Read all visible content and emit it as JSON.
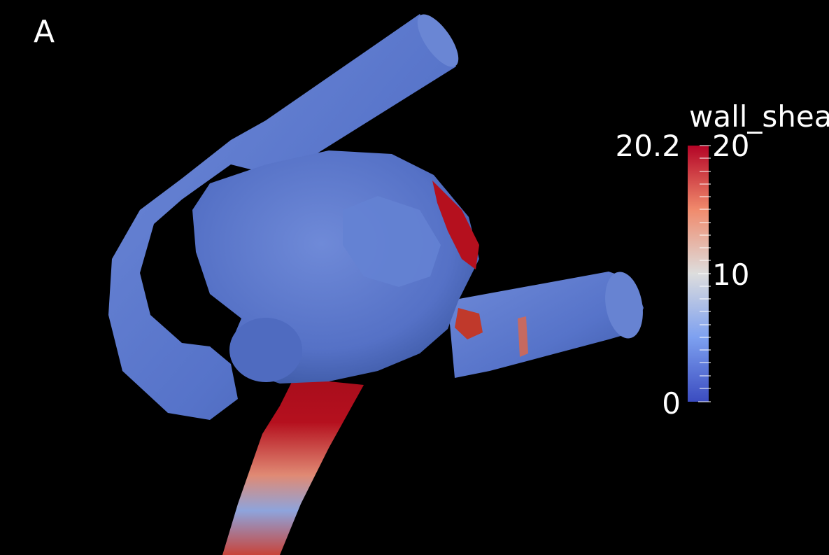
{
  "panel_label": "A",
  "colorbar": {
    "title": "wall_shea",
    "range_max_label": "20.2",
    "tick_labels": [
      "20",
      "10",
      "0"
    ],
    "min": 0,
    "max": 20.2,
    "colormap": [
      "#3b4cc0",
      "#dddddd",
      "#b40426"
    ]
  },
  "colors": {
    "background": "#000000",
    "low_shear": "#5b78cf",
    "high_shear": "#b5101e"
  }
}
